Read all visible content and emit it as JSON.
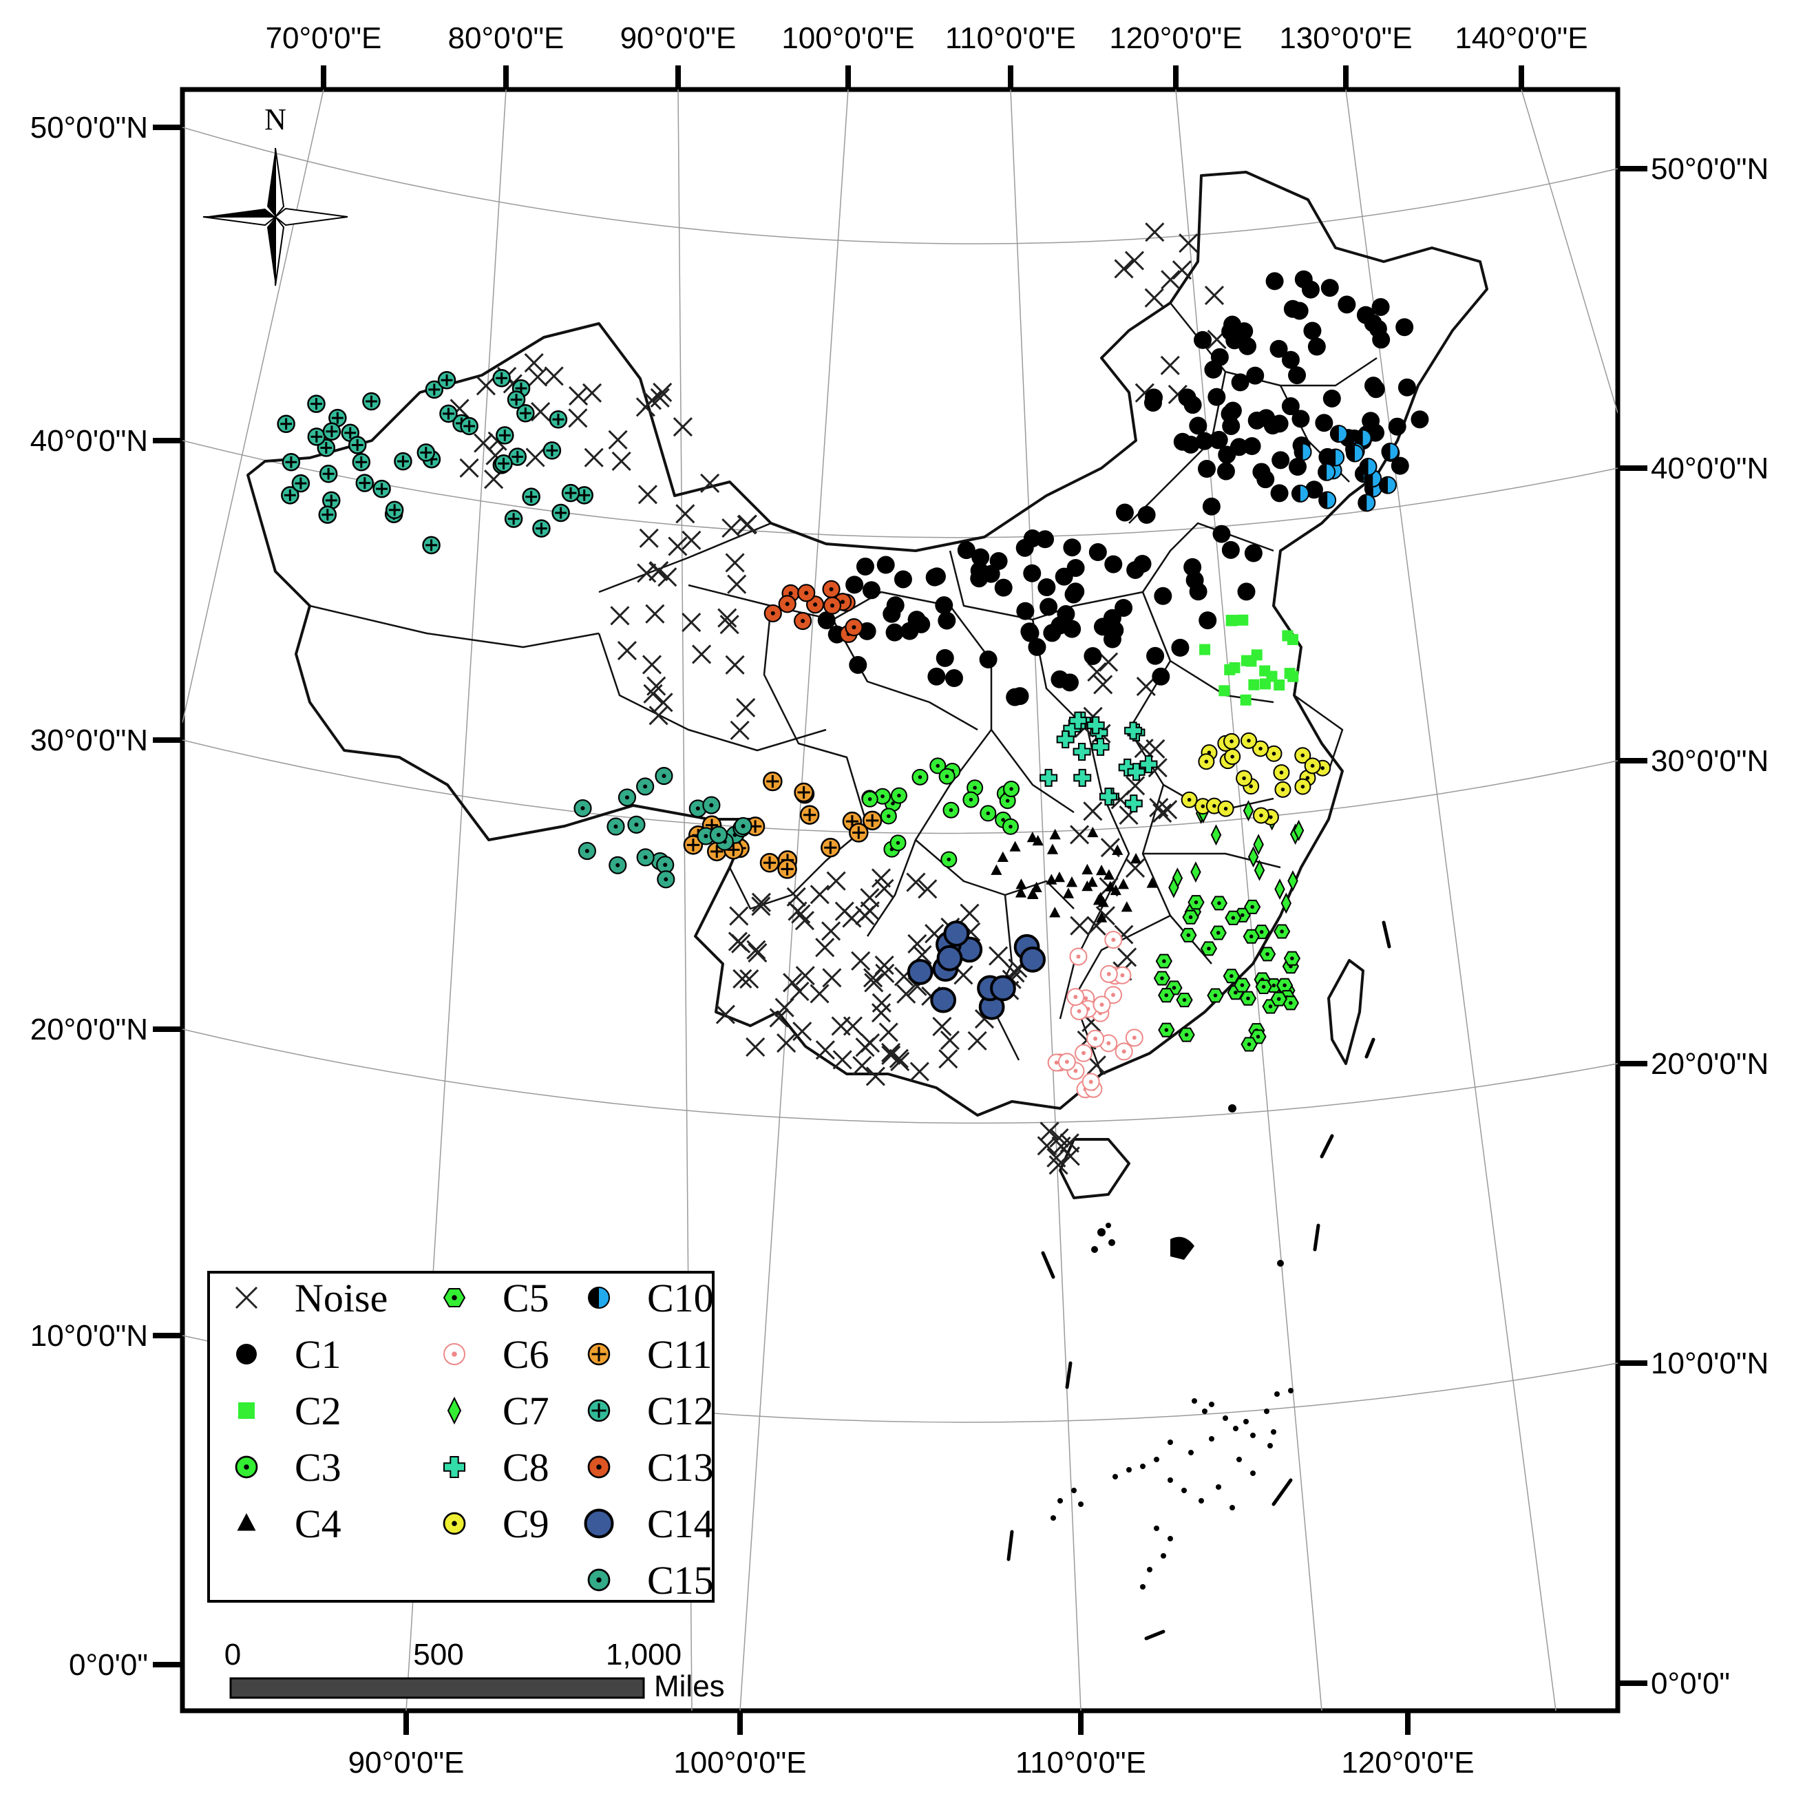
{
  "axes": {
    "top": [
      "70°0'0\"E",
      "80°0'0\"E",
      "90°0'0\"E",
      "100°0'0\"E",
      "110°0'0\"E",
      "120°0'0\"E",
      "130°0'0\"E",
      "140°0'0\"E"
    ],
    "bottom": [
      "90°0'0\"E",
      "100°0'0\"E",
      "110°0'0\"E",
      "120°0'0\"E"
    ],
    "left": [
      "50°0'0\"N",
      "40°0'0\"N",
      "30°0'0\"N",
      "20°0'0\"N",
      "10°0'0\"N",
      "0°0'0\""
    ],
    "right": [
      "50°0'0\"N",
      "40°0'0\"N",
      "30°0'0\"N",
      "20°0'0\"N",
      "10°0'0\"N",
      "0°0'0\""
    ]
  },
  "north": "N",
  "legend": [
    {
      "label": "Noise",
      "symbol": "x",
      "color": "#000000"
    },
    {
      "label": "C1",
      "symbol": "dot",
      "color": "#000000"
    },
    {
      "label": "C2",
      "symbol": "square",
      "color": "#33ee33"
    },
    {
      "label": "C3",
      "symbol": "ring-dot",
      "color": "#33ee33"
    },
    {
      "label": "C4",
      "symbol": "triangle",
      "color": "#000000"
    },
    {
      "label": "C5",
      "symbol": "hex-dot",
      "color": "#33ee33"
    },
    {
      "label": "C6",
      "symbol": "ring-dot",
      "color": "#ee8888"
    },
    {
      "label": "C7",
      "symbol": "diamond",
      "color": "#33ee33"
    },
    {
      "label": "C8",
      "symbol": "plus",
      "color": "#33ddaa"
    },
    {
      "label": "C9",
      "symbol": "ring-dot",
      "color": "#eeee33"
    },
    {
      "label": "C10",
      "symbol": "half",
      "color": "#22aaee"
    },
    {
      "label": "C11",
      "symbol": "circle-plus",
      "color": "#f0a030"
    },
    {
      "label": "C12",
      "symbol": "circle-plus",
      "color": "#33bb99"
    },
    {
      "label": "C13",
      "symbol": "ring-dot",
      "color": "#dd5522"
    },
    {
      "label": "C14",
      "symbol": "big-circle",
      "color": "#3a5a99"
    },
    {
      "label": "C15",
      "symbol": "ring-dot",
      "color": "#33aa88"
    }
  ],
  "scale_bar": {
    "ticks": [
      "0",
      "500",
      "1,000"
    ],
    "unit": "Miles"
  }
}
